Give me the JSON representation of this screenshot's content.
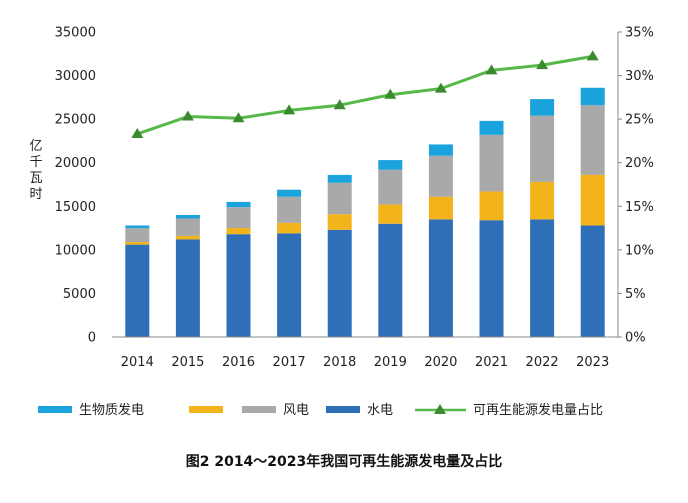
{
  "chart_data": {
    "type": "bar",
    "stacked": true,
    "categories": [
      "2014",
      "2015",
      "2016",
      "2017",
      "2018",
      "2019",
      "2020",
      "2021",
      "2022",
      "2023"
    ],
    "series": [
      {
        "name": "水电",
        "color": "#2f6fb8",
        "values": [
          10600,
          11200,
          11800,
          11900,
          12300,
          13000,
          13500,
          13400,
          13500,
          12800
        ]
      },
      {
        "name": "",
        "color": "#f3b41b",
        "values": [
          300,
          400,
          700,
          1200,
          1800,
          2200,
          2600,
          3300,
          4300,
          5800
        ]
      },
      {
        "name": "风电",
        "color": "#a9a9a9",
        "values": [
          1600,
          2000,
          2400,
          3000,
          3600,
          4000,
          4700,
          6500,
          7600,
          8000
        ]
      },
      {
        "name": "生物质发电",
        "color": "#1aa3dc",
        "values": [
          300,
          400,
          600,
          800,
          900,
          1100,
          1300,
          1600,
          1900,
          2000
        ]
      }
    ],
    "line": {
      "name": "可再生能源发电量占比",
      "color": "#55b848",
      "marker_color": "#3a8a2e",
      "values": [
        23.3,
        25.3,
        25.1,
        26.0,
        26.6,
        27.8,
        28.5,
        30.6,
        31.2,
        32.2
      ]
    },
    "ylim": [
      0,
      35000
    ],
    "y_ticks": [
      "0",
      "5000",
      "10000",
      "15000",
      "20000",
      "25000",
      "30000",
      "35000"
    ],
    "y2lim": [
      0,
      35
    ],
    "y2_ticks": [
      "0%",
      "5%",
      "10%",
      "15%",
      "20%",
      "25%",
      "30%",
      "35%"
    ],
    "ylabel": "亿千瓦时",
    "legend_position": "bottom",
    "caption": "图2   2014～2023年我国可再生能源发电量及占比"
  }
}
